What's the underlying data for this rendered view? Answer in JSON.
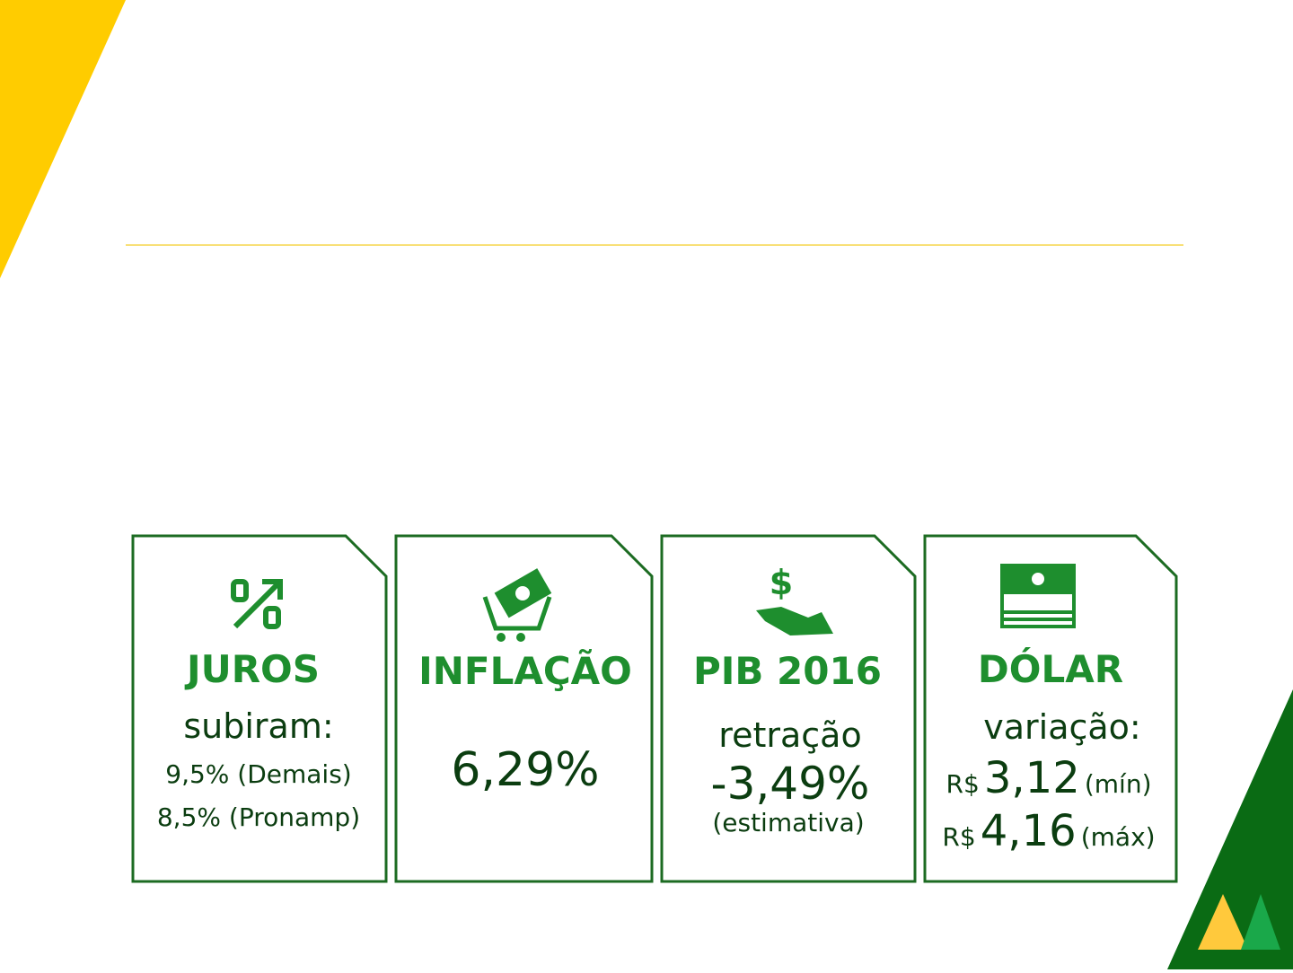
{
  "slide": {
    "cards": [
      {
        "title": "JUROS",
        "lines": [
          "subiram:",
          "9,5% (Demais)",
          "8,5% (Pronamp)"
        ]
      },
      {
        "title": "INFLAÇÃO",
        "lines": [
          "6,29%"
        ]
      },
      {
        "title": "PIB 2016",
        "lines": [
          "retração",
          "-3,49%",
          "(estimativa)"
        ]
      },
      {
        "title": "DÓLAR",
        "lines": [
          "variação:",
          [
            "R$",
            "3,12",
            "(mín)"
          ],
          [
            "R$",
            "4,16",
            "(máx)"
          ]
        ]
      }
    ]
  }
}
